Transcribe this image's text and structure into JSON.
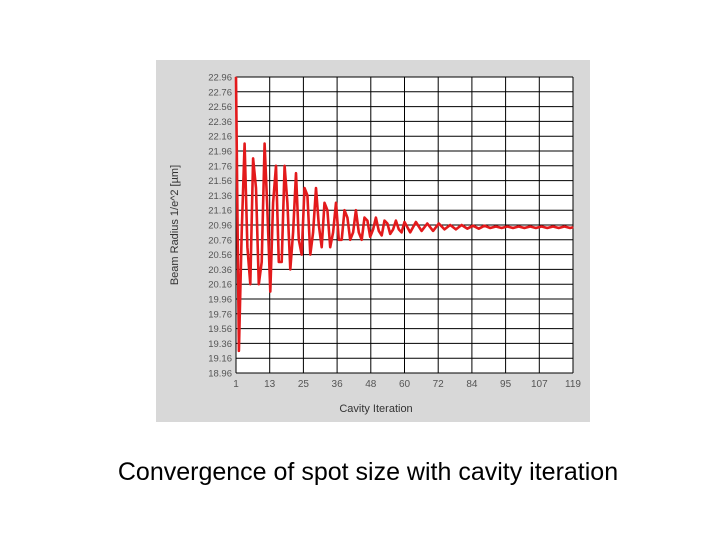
{
  "caption": "Convergence of spot size with cavity iteration",
  "colors": {
    "panel": "#d8d8d8",
    "plot_bg": "#ffffff",
    "grid": "#000000",
    "series": "#e31a1c",
    "text": "#333333"
  },
  "chart_data": {
    "type": "line",
    "title": "",
    "xlabel": "Cavity Iteration",
    "ylabel": "Beam Radius 1/e^2 [µm]",
    "x_ticks": [
      "1",
      "13",
      "25",
      "36",
      "48",
      "60",
      "72",
      "84",
      "95",
      "107",
      "119"
    ],
    "y_ticks": [
      "22.96",
      "22.76",
      "22.56",
      "22.36",
      "22.16",
      "21.96",
      "21.76",
      "21.56",
      "21.36",
      "21.16",
      "20.96",
      "20.76",
      "20.56",
      "20.36",
      "20.16",
      "19.96",
      "19.76",
      "19.56",
      "19.36",
      "19.16",
      "18.96"
    ],
    "xlim": [
      1,
      119
    ],
    "ylim": [
      18.96,
      22.96
    ],
    "grid": true,
    "legend": "none",
    "series": [
      {
        "color": "#e31a1c",
        "x": [
          1,
          2,
          3,
          4,
          5,
          6,
          7,
          8,
          9,
          10,
          11,
          12,
          13,
          14,
          15,
          16,
          17,
          18,
          19,
          20,
          21,
          22,
          23,
          24,
          25,
          26,
          27,
          28,
          29,
          30,
          31,
          32,
          33,
          34,
          35,
          36,
          37,
          38,
          39,
          40,
          41,
          42,
          43,
          44,
          45,
          46,
          47,
          48,
          49,
          50,
          51,
          52,
          53,
          54,
          55,
          56,
          57,
          58,
          59,
          60,
          62,
          64,
          66,
          68,
          70,
          72,
          74,
          76,
          78,
          80,
          82,
          84,
          86,
          88,
          90,
          92,
          94,
          96,
          98,
          100,
          102,
          104,
          106,
          108,
          110,
          112,
          114,
          116,
          118,
          119
        ],
        "y": [
          22.96,
          19.26,
          20.86,
          22.06,
          20.66,
          20.16,
          21.86,
          21.46,
          20.16,
          20.46,
          22.06,
          21.16,
          20.06,
          21.26,
          21.76,
          20.46,
          20.46,
          21.76,
          21.26,
          20.36,
          20.86,
          21.66,
          20.76,
          20.56,
          21.46,
          21.36,
          20.56,
          20.86,
          21.46,
          20.96,
          20.66,
          21.26,
          21.16,
          20.66,
          20.86,
          21.26,
          20.76,
          20.76,
          21.16,
          21.06,
          20.76,
          20.86,
          21.16,
          20.86,
          20.76,
          21.06,
          21.02,
          20.8,
          20.9,
          21.06,
          20.88,
          20.82,
          21.02,
          20.98,
          20.84,
          20.9,
          21.02,
          20.9,
          20.86,
          21.0,
          20.86,
          21.0,
          20.88,
          20.98,
          20.88,
          20.98,
          20.9,
          20.96,
          20.9,
          20.96,
          20.91,
          20.95,
          20.91,
          20.95,
          20.92,
          20.94,
          20.92,
          20.94,
          20.92,
          20.94,
          20.92,
          20.94,
          20.92,
          20.94,
          20.92,
          20.94,
          20.92,
          20.94,
          20.92,
          20.93
        ]
      }
    ]
  }
}
